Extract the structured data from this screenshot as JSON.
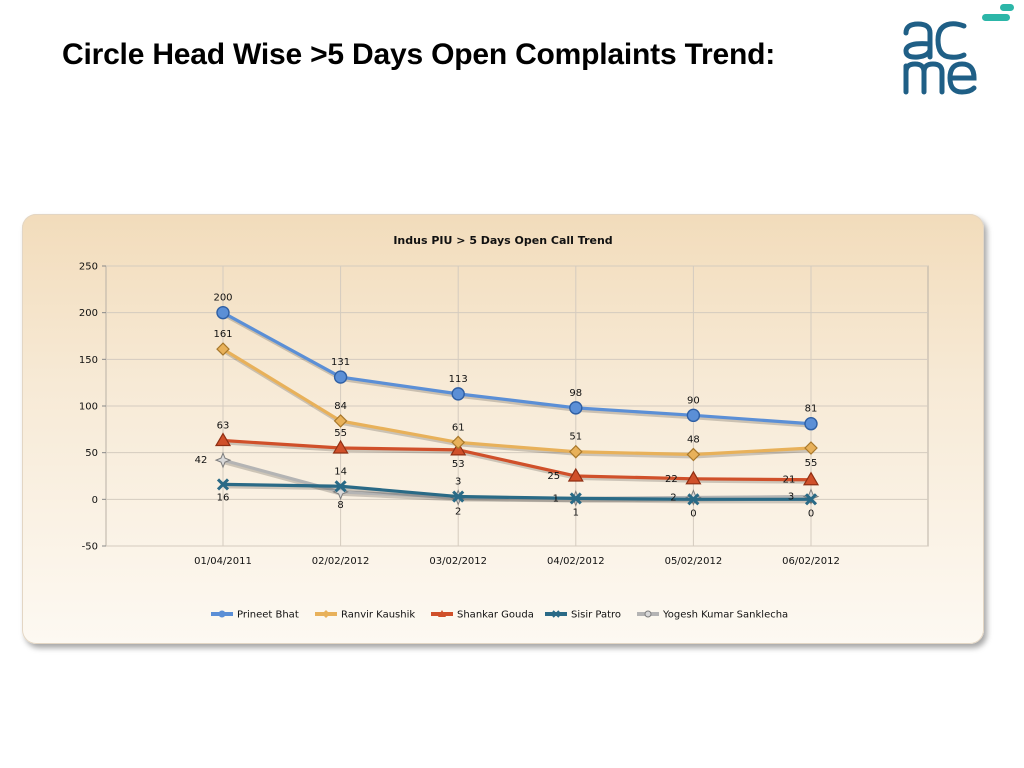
{
  "slide": {
    "title": "Circle Head Wise >5 Days Open Complaints Trend:"
  },
  "logo": {
    "text_top": "ac",
    "text_bottom": "me",
    "color_main": "#1f5f86",
    "color_accent": "#2cb6a8"
  },
  "chart_data": {
    "type": "line",
    "title": "Indus PIU > 5 Days Open Call Trend",
    "xlabel": "",
    "ylabel": "",
    "categories": [
      "01/04/2011",
      "02/02/2012",
      "03/02/2012",
      "04/02/2012",
      "05/02/2012",
      "06/02/2012"
    ],
    "y_ticks": [
      -50,
      0,
      50,
      100,
      150,
      200,
      250
    ],
    "ylim": [
      -50,
      250
    ],
    "grid": true,
    "legend_position": "bottom",
    "series": [
      {
        "name": "Prineet Bhat",
        "values": [
          200,
          131,
          113,
          98,
          90,
          81
        ],
        "color": "#5b8fd6",
        "marker": "circle"
      },
      {
        "name": "Ranvir Kaushik",
        "values": [
          161,
          84,
          61,
          51,
          48,
          55
        ],
        "color": "#e8b15a",
        "marker": "diamond"
      },
      {
        "name": "Shankar Gouda",
        "values": [
          63,
          55,
          53,
          25,
          22,
          21
        ],
        "color": "#d0502a",
        "marker": "triangle"
      },
      {
        "name": "Sisir Patro",
        "values": [
          16,
          14,
          3,
          1,
          0,
          0
        ],
        "color": "#2a6a86",
        "marker": "x"
      },
      {
        "name": "Yogesh Kumar Sanklecha",
        "values": [
          42,
          8,
          2,
          1,
          2,
          3
        ],
        "color": "#b4b4b4",
        "marker": "star"
      }
    ]
  }
}
